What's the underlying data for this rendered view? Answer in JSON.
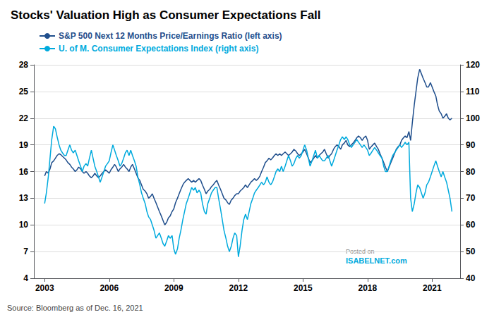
{
  "chart_data": {
    "type": "line",
    "title": "Stocks' Valuation High as Consumer Expectations Fall",
    "annotations": [
      "Source: Bloomberg as of Dec. 16, 2021",
      "Posted on",
      "ISABELNET.com"
    ],
    "legend": "upper left",
    "grid": true,
    "xlim": [
      2002.5,
      2022.3
    ],
    "xticks": [
      2003,
      2006,
      2009,
      2012,
      2015,
      2018,
      2021
    ],
    "ylim": [
      4,
      28
    ],
    "yticks": [
      4,
      7,
      10,
      13,
      16,
      19,
      22,
      25,
      28
    ],
    "y2lim": [
      40,
      120
    ],
    "y2ticks": [
      40,
      50,
      60,
      70,
      80,
      90,
      100,
      110,
      120
    ],
    "x": [
      2003.0,
      2003.08,
      2003.17,
      2003.25,
      2003.33,
      2003.42,
      2003.5,
      2003.58,
      2003.67,
      2003.75,
      2003.83,
      2003.92,
      2004.0,
      2004.08,
      2004.17,
      2004.25,
      2004.33,
      2004.42,
      2004.5,
      2004.58,
      2004.67,
      2004.75,
      2004.83,
      2004.92,
      2005.0,
      2005.08,
      2005.17,
      2005.25,
      2005.33,
      2005.42,
      2005.5,
      2005.58,
      2005.67,
      2005.75,
      2005.83,
      2005.92,
      2006.0,
      2006.08,
      2006.17,
      2006.25,
      2006.33,
      2006.42,
      2006.5,
      2006.58,
      2006.67,
      2006.75,
      2006.83,
      2006.92,
      2007.0,
      2007.08,
      2007.17,
      2007.25,
      2007.33,
      2007.42,
      2007.5,
      2007.58,
      2007.67,
      2007.75,
      2007.83,
      2007.92,
      2008.0,
      2008.08,
      2008.17,
      2008.25,
      2008.33,
      2008.42,
      2008.5,
      2008.58,
      2008.67,
      2008.75,
      2008.83,
      2008.92,
      2009.0,
      2009.08,
      2009.17,
      2009.25,
      2009.33,
      2009.42,
      2009.5,
      2009.58,
      2009.67,
      2009.75,
      2009.83,
      2009.92,
      2010.0,
      2010.08,
      2010.17,
      2010.25,
      2010.33,
      2010.42,
      2010.5,
      2010.58,
      2010.67,
      2010.75,
      2010.83,
      2010.92,
      2011.0,
      2011.08,
      2011.17,
      2011.25,
      2011.33,
      2011.42,
      2011.5,
      2011.58,
      2011.67,
      2011.75,
      2011.83,
      2011.92,
      2012.0,
      2012.08,
      2012.17,
      2012.25,
      2012.33,
      2012.42,
      2012.5,
      2012.58,
      2012.67,
      2012.75,
      2012.83,
      2012.92,
      2013.0,
      2013.08,
      2013.17,
      2013.25,
      2013.33,
      2013.42,
      2013.5,
      2013.58,
      2013.67,
      2013.75,
      2013.83,
      2013.92,
      2014.0,
      2014.08,
      2014.17,
      2014.25,
      2014.33,
      2014.42,
      2014.5,
      2014.58,
      2014.67,
      2014.75,
      2014.83,
      2014.92,
      2015.0,
      2015.08,
      2015.17,
      2015.25,
      2015.33,
      2015.42,
      2015.5,
      2015.58,
      2015.67,
      2015.75,
      2015.83,
      2015.92,
      2016.0,
      2016.08,
      2016.17,
      2016.25,
      2016.33,
      2016.42,
      2016.5,
      2016.58,
      2016.67,
      2016.75,
      2016.83,
      2016.92,
      2017.0,
      2017.08,
      2017.17,
      2017.25,
      2017.33,
      2017.42,
      2017.5,
      2017.58,
      2017.67,
      2017.75,
      2017.83,
      2017.92,
      2018.0,
      2018.08,
      2018.17,
      2018.25,
      2018.33,
      2018.42,
      2018.5,
      2018.58,
      2018.67,
      2018.75,
      2018.83,
      2018.92,
      2019.0,
      2019.08,
      2019.17,
      2019.25,
      2019.33,
      2019.42,
      2019.5,
      2019.58,
      2019.67,
      2019.75,
      2019.83,
      2019.92,
      2020.0,
      2020.08,
      2020.17,
      2020.25,
      2020.33,
      2020.42,
      2020.5,
      2020.58,
      2020.67,
      2020.75,
      2020.83,
      2020.92,
      2021.0,
      2021.08,
      2021.17,
      2021.25,
      2021.33,
      2021.42,
      2021.5,
      2021.58,
      2021.67,
      2021.75,
      2021.83,
      2021.92
    ],
    "series": [
      {
        "name": "S&P 500 Next 12 Months Price/Earnings Ratio (left axis)",
        "color": "#1f4e8c",
        "values": [
          15.5,
          16.0,
          15.8,
          16.3,
          17.0,
          17.2,
          17.5,
          17.8,
          18.0,
          17.9,
          17.7,
          17.5,
          17.3,
          17.0,
          16.8,
          16.5,
          16.3,
          16.0,
          16.2,
          16.5,
          16.3,
          16.0,
          15.8,
          16.0,
          15.8,
          15.5,
          15.3,
          15.5,
          15.8,
          15.5,
          15.3,
          15.5,
          15.8,
          16.0,
          16.2,
          16.0,
          15.8,
          16.2,
          16.5,
          16.8,
          16.5,
          16.0,
          16.3,
          16.5,
          16.8,
          16.5,
          16.3,
          16.0,
          16.5,
          16.8,
          16.3,
          15.8,
          15.3,
          15.0,
          14.5,
          14.0,
          13.8,
          13.5,
          13.0,
          13.2,
          13.5,
          13.0,
          12.5,
          12.0,
          11.5,
          11.0,
          10.5,
          10.0,
          10.3,
          10.8,
          11.0,
          11.5,
          11.8,
          12.5,
          13.0,
          13.5,
          14.0,
          14.5,
          14.8,
          15.0,
          15.2,
          15.0,
          14.8,
          15.0,
          14.8,
          15.0,
          15.2,
          15.0,
          14.5,
          14.0,
          13.5,
          13.8,
          14.0,
          14.3,
          14.5,
          14.8,
          15.0,
          14.5,
          14.0,
          13.5,
          13.0,
          12.8,
          12.5,
          12.3,
          12.8,
          13.0,
          13.3,
          13.5,
          13.5,
          13.8,
          14.0,
          14.2,
          14.5,
          14.2,
          14.5,
          14.8,
          15.0,
          15.2,
          15.0,
          15.2,
          15.5,
          16.0,
          16.5,
          17.0,
          17.2,
          17.5,
          17.3,
          17.5,
          17.8,
          18.0,
          17.8,
          18.0,
          17.8,
          18.0,
          18.2,
          18.0,
          17.8,
          18.0,
          18.2,
          18.5,
          18.3,
          18.0,
          17.8,
          18.0,
          18.2,
          18.5,
          18.0,
          17.5,
          17.0,
          17.2,
          17.5,
          17.8,
          17.5,
          17.8,
          18.0,
          18.2,
          18.5,
          18.0,
          17.5,
          17.8,
          18.0,
          18.5,
          18.8,
          19.0,
          18.8,
          18.5,
          19.0,
          19.2,
          19.5,
          19.0,
          18.8,
          19.0,
          19.2,
          19.5,
          19.8,
          20.0,
          19.8,
          19.5,
          19.8,
          20.0,
          19.5,
          18.5,
          18.8,
          19.0,
          19.2,
          18.8,
          18.5,
          18.0,
          17.5,
          17.0,
          16.5,
          16.0,
          16.5,
          17.0,
          17.5,
          18.0,
          18.5,
          18.8,
          19.0,
          19.5,
          19.8,
          20.0,
          19.8,
          20.5,
          19.5,
          21.5,
          23.5,
          25.0,
          26.5,
          27.5,
          27.0,
          26.5,
          26.0,
          25.5,
          25.5,
          26.0,
          25.5,
          25.0,
          24.5,
          23.5,
          22.8,
          22.5,
          22.0,
          22.2,
          22.5,
          22.0,
          21.8,
          22.0
        ]
      },
      {
        "name": "U. of M. Consumer Expectations Index (right axis)",
        "color": "#00aadd",
        "axis": "y2",
        "values": [
          68,
          72,
          78,
          85,
          92,
          97,
          96,
          93,
          90,
          88,
          87,
          86,
          86,
          88,
          90,
          88,
          87,
          88,
          86,
          84,
          82,
          80,
          82,
          83,
          82,
          85,
          88,
          85,
          82,
          80,
          78,
          76,
          78,
          80,
          82,
          83,
          84,
          87,
          90,
          88,
          86,
          84,
          82,
          83,
          85,
          87,
          88,
          86,
          88,
          86,
          84,
          82,
          78,
          75,
          72,
          70,
          68,
          65,
          63,
          62,
          60,
          58,
          55,
          56,
          57,
          55,
          53,
          52,
          54,
          56,
          55,
          56,
          51,
          49,
          51,
          55,
          58,
          62,
          65,
          68,
          70,
          72,
          74,
          73,
          74,
          72,
          73,
          72,
          68,
          65,
          64,
          68,
          70,
          72,
          73,
          74,
          74,
          70,
          66,
          62,
          58,
          55,
          52,
          50,
          52,
          55,
          57,
          56,
          48,
          52,
          58,
          62,
          64,
          62,
          65,
          68,
          70,
          72,
          73,
          74,
          75,
          76,
          75,
          76,
          78,
          76,
          75,
          76,
          78,
          80,
          81,
          80,
          82,
          80,
          82,
          84,
          86,
          84,
          82,
          83,
          85,
          86,
          85,
          86,
          88,
          90,
          88,
          85,
          82,
          84,
          86,
          88,
          85,
          86,
          85,
          84,
          84,
          85,
          86,
          84,
          82,
          84,
          86,
          88,
          90,
          92,
          93,
          92,
          93,
          92,
          90,
          89,
          90,
          91,
          92,
          91,
          90,
          89,
          90,
          89,
          88,
          86,
          87,
          88,
          89,
          88,
          87,
          86,
          85,
          82,
          80,
          80,
          82,
          84,
          86,
          87,
          88,
          89,
          90,
          89,
          90,
          91,
          90,
          91,
          70,
          65,
          68,
          72,
          75,
          74,
          72,
          70,
          72,
          75,
          76,
          78,
          80,
          82,
          84,
          82,
          80,
          78,
          80,
          78,
          76,
          73,
          70,
          65
        ]
      }
    ]
  }
}
